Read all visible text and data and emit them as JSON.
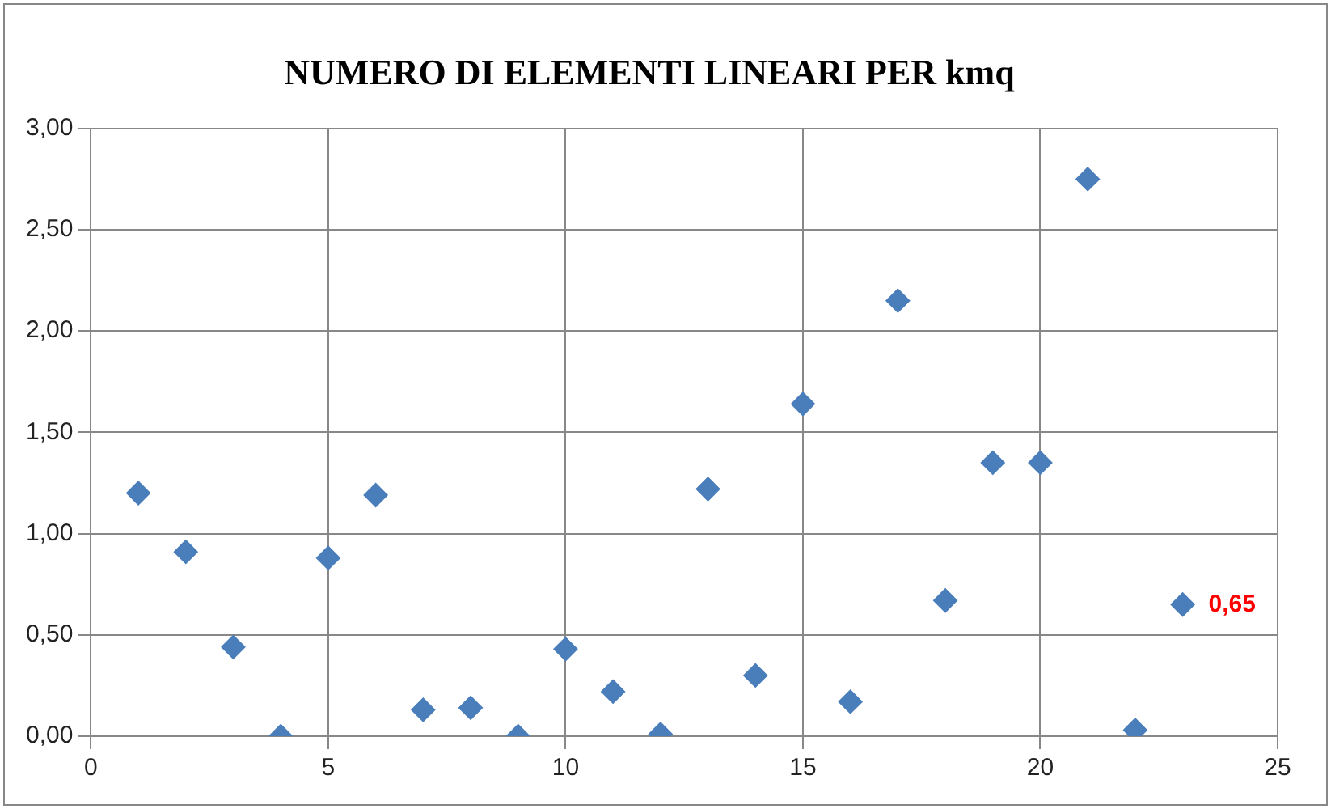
{
  "chart_data": {
    "type": "scatter",
    "title": "NUMERO DI ELEMENTI LINEARI PER kmq",
    "x": [
      1,
      2,
      3,
      4,
      5,
      6,
      7,
      8,
      9,
      10,
      11,
      12,
      13,
      14,
      15,
      16,
      17,
      18,
      19,
      20,
      21,
      22,
      23
    ],
    "series": [
      {
        "color": "#4a7ebb",
        "values": [
          1.2,
          0.91,
          0.44,
          0,
          0.88,
          1.19,
          0.13,
          0.14,
          0,
          0.43,
          0.22,
          0.01,
          1.22,
          0.3,
          1.64,
          0.17,
          2.15,
          0.67,
          1.35,
          1.35,
          2.75,
          0.03,
          0.65
        ]
      }
    ],
    "xlim": [
      0,
      25
    ],
    "xticks": [
      0,
      5,
      10,
      15,
      20,
      25
    ],
    "ylim": [
      0,
      3
    ],
    "yticks": [
      {
        "value": 0,
        "label": "0,00"
      },
      {
        "value": 0.5,
        "label": "0,50"
      },
      {
        "value": 1,
        "label": "1,00"
      },
      {
        "value": 1.5,
        "label": "1,50"
      },
      {
        "value": 2,
        "label": "2,00"
      },
      {
        "value": 2.5,
        "label": "2,50"
      },
      {
        "value": 3,
        "label": "3,00"
      }
    ],
    "annotations": [
      {
        "text": "0,65",
        "x": 23,
        "y": 0.65
      }
    ],
    "grid": true,
    "marker": "diamond",
    "legend": false
  }
}
